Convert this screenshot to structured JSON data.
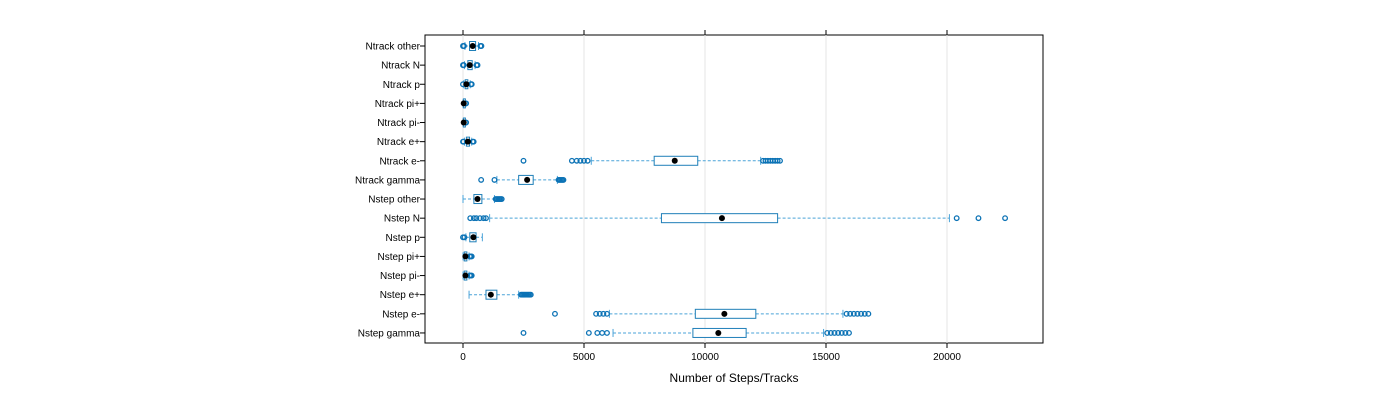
{
  "chart_data": {
    "type": "boxplot",
    "orientation": "horizontal",
    "xlabel": "Number of Steps/Tracks",
    "xlim": [
      -1500,
      24000
    ],
    "xticks": [
      0,
      5000,
      10000,
      15000,
      20000
    ],
    "xtick_labels": [
      "0",
      "5000",
      "10000",
      "15000",
      "20000"
    ],
    "grid": "vertical",
    "colors": {
      "box": "#1f7fb8",
      "whisker": "#4aa3d8",
      "outlier": "#0b72b5",
      "median": "#000000"
    },
    "categories": [
      {
        "label": "Ntrack other",
        "q1": 270,
        "median": 400,
        "q3": 520,
        "whisker_low": 80,
        "whisker_high": 640,
        "outliers": [
          0,
          40,
          720,
          760
        ]
      },
      {
        "label": "Ntrack N",
        "q1": 200,
        "median": 280,
        "q3": 380,
        "whisker_low": 60,
        "whisker_high": 500,
        "outliers": [
          0,
          30,
          560,
          600
        ]
      },
      {
        "label": "Ntrack p",
        "q1": 90,
        "median": 140,
        "q3": 200,
        "whisker_low": 30,
        "whisker_high": 300,
        "outliers": [
          0,
          330,
          360
        ]
      },
      {
        "label": "Ntrack pi+",
        "q1": 15,
        "median": 30,
        "q3": 50,
        "whisker_low": 0,
        "whisker_high": 90,
        "outliers": [
          110,
          130
        ]
      },
      {
        "label": "Ntrack pi-",
        "q1": 15,
        "median": 30,
        "q3": 50,
        "whisker_low": 0,
        "whisker_high": 90,
        "outliers": [
          110,
          130
        ]
      },
      {
        "label": "Ntrack e+",
        "q1": 140,
        "median": 200,
        "q3": 270,
        "whisker_low": 60,
        "whisker_high": 360,
        "outliers": [
          0,
          20,
          400,
          440
        ]
      },
      {
        "label": "Ntrack e-",
        "q1": 7900,
        "median": 8750,
        "q3": 9700,
        "whisker_low": 5300,
        "whisker_high": 12300,
        "outliers": [
          2500,
          4500,
          4700,
          4850,
          5000,
          5150,
          12400,
          12500,
          12600,
          12700,
          12800,
          12900,
          13000,
          13100
        ]
      },
      {
        "label": "Ntrack gamma",
        "q1": 2300,
        "median": 2650,
        "q3": 2900,
        "whisker_low": 1400,
        "whisker_high": 3900,
        "outliers": [
          750,
          1300,
          3950,
          4000,
          4050,
          4100,
          4150
        ]
      },
      {
        "label": "Nstep other",
        "q1": 450,
        "median": 600,
        "q3": 780,
        "whisker_low": 0,
        "whisker_high": 1300,
        "outliers": [
          1350,
          1400,
          1450,
          1500,
          1550,
          1600
        ]
      },
      {
        "label": "Nstep N",
        "q1": 8200,
        "median": 10700,
        "q3": 13000,
        "whisker_low": 1100,
        "whisker_high": 20100,
        "outliers": [
          300,
          450,
          550,
          700,
          850,
          950,
          20400,
          21300,
          22400
        ]
      },
      {
        "label": "Nstep p",
        "q1": 280,
        "median": 430,
        "q3": 540,
        "whisker_low": 120,
        "whisker_high": 800,
        "outliers": [
          0,
          60
        ]
      },
      {
        "label": "Nstep pi+",
        "q1": 50,
        "median": 100,
        "q3": 160,
        "whisker_low": 0,
        "whisker_high": 250,
        "outliers": [
          280,
          320,
          360
        ]
      },
      {
        "label": "Nstep pi-",
        "q1": 50,
        "median": 100,
        "q3": 160,
        "whisker_low": 0,
        "whisker_high": 250,
        "outliers": [
          280,
          320,
          360
        ]
      },
      {
        "label": "Nstep e+",
        "q1": 950,
        "median": 1150,
        "q3": 1400,
        "whisker_low": 250,
        "whisker_high": 2300,
        "outliers": [
          2400,
          2450,
          2500,
          2550,
          2600,
          2650,
          2700,
          2750,
          2800
        ]
      },
      {
        "label": "Nstep e-",
        "q1": 9600,
        "median": 10800,
        "q3": 12100,
        "whisker_low": 6050,
        "whisker_high": 15700,
        "outliers": [
          3800,
          5500,
          5650,
          5800,
          5950,
          15850,
          16000,
          16150,
          16300,
          16450,
          16600,
          16750
        ]
      },
      {
        "label": "Nstep gamma",
        "q1": 9500,
        "median": 10550,
        "q3": 11700,
        "whisker_low": 6200,
        "whisker_high": 14900,
        "outliers": [
          2500,
          5200,
          5550,
          5750,
          5950,
          15050,
          15200,
          15350,
          15500,
          15650,
          15800,
          15950
        ]
      }
    ]
  }
}
